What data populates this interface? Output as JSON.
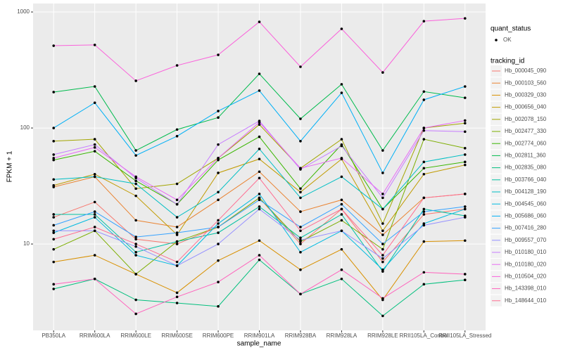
{
  "chart_data": {
    "type": "line",
    "x_label": "sample_name",
    "y_label": "FPKM + 1",
    "log_y": true,
    "grid": true,
    "point_color": "#000000",
    "categories": [
      "PB350LA",
      "RRIM600LA",
      "RRIM600LE",
      "RRIM600SE",
      "RRIM600PE",
      "RRIM901LA",
      "RRIM928BA",
      "RRIM928LA",
      "RRIM928LE",
      "RRII105LA_Control",
      "RRII105LA_Stressed"
    ],
    "ylim": [
      1.8,
      1183
    ],
    "yticks": [
      10,
      100,
      1000
    ],
    "shape_legend": {
      "title": "quant_status",
      "entries": [
        "OK"
      ]
    },
    "legend_title": "tracking_id",
    "legend_position": "right",
    "series": [
      {
        "name": "Hb_000045_090",
        "color": "#F8766D",
        "values": [
          17,
          23,
          11,
          10,
          14,
          25,
          10,
          20,
          7,
          18,
          20
        ]
      },
      {
        "name": "Hb_000103_560",
        "color": "#EA8331",
        "values": [
          31,
          38,
          16,
          14,
          24,
          42,
          19,
          24,
          12,
          25,
          27
        ]
      },
      {
        "name": "Hb_000329_030",
        "color": "#D89000",
        "values": [
          7,
          8,
          5.5,
          3.8,
          7.2,
          10.7,
          6,
          9,
          3.3,
          10.5,
          10.7
        ]
      },
      {
        "name": "Hb_000656_040",
        "color": "#C09B00",
        "values": [
          32,
          40,
          26,
          12,
          41,
          54,
          28,
          54,
          13,
          40,
          48
        ]
      },
      {
        "name": "Hb_002078_150",
        "color": "#A3A500",
        "values": [
          77,
          80,
          30,
          33,
          55,
          107,
          45,
          80,
          15,
          100,
          110
        ]
      },
      {
        "name": "Hb_002477_330",
        "color": "#7CAE00",
        "values": [
          9,
          13,
          5.5,
          10.5,
          14,
          25,
          10.5,
          16,
          9,
          80,
          67
        ]
      },
      {
        "name": "Hb_002774_060",
        "color": "#39B600",
        "values": [
          53,
          63,
          35,
          22,
          53,
          84,
          30,
          72,
          20,
          45,
          51
        ]
      },
      {
        "name": "Hb_002811_360",
        "color": "#00BB4E",
        "values": [
          204,
          228,
          64,
          97,
          123,
          293,
          120,
          238,
          64,
          206,
          182
        ]
      },
      {
        "name": "Hb_002835_080",
        "color": "#00BF7D",
        "values": [
          4.1,
          5,
          3.3,
          3.1,
          2.9,
          7.3,
          3.7,
          5,
          2.4,
          4.5,
          4.9
        ]
      },
      {
        "name": "Hb_003766_040",
        "color": "#00C1A3",
        "values": [
          18,
          18,
          8.5,
          10.5,
          12.5,
          21,
          11.3,
          18,
          5.8,
          20,
          17.5
        ]
      },
      {
        "name": "Hb_004128_190",
        "color": "#00BFC4",
        "values": [
          36,
          38,
          33,
          17,
          28,
          66,
          25,
          38,
          20,
          51,
          59
        ]
      },
      {
        "name": "Hb_004545_060",
        "color": "#00BAE0",
        "values": [
          12.5,
          17,
          8,
          6.5,
          15,
          27,
          8.5,
          13,
          6,
          15,
          20
        ]
      },
      {
        "name": "Hb_005686_060",
        "color": "#00B0F6",
        "values": [
          100,
          165,
          58,
          85,
          140,
          210,
          77,
          201,
          41,
          175,
          228
        ]
      },
      {
        "name": "Hb_007416_280",
        "color": "#35A2FF",
        "values": [
          14.5,
          19,
          11.5,
          12.5,
          14,
          24,
          14,
          22,
          10,
          19,
          21
        ]
      },
      {
        "name": "Hb_009557_070",
        "color": "#9590FF",
        "values": [
          13,
          13,
          9.5,
          6.5,
          10,
          20,
          10.8,
          13,
          7.5,
          14.5,
          17
        ]
      },
      {
        "name": "Hb_010180_010",
        "color": "#C77CFF",
        "values": [
          59,
          72,
          37,
          22,
          72,
          115,
          44,
          70,
          25,
          95,
          93
        ]
      },
      {
        "name": "Hb_010180_020",
        "color": "#E76BF3",
        "values": [
          55,
          68,
          38,
          24,
          55,
          112,
          45,
          55,
          27,
          100,
          116
        ]
      },
      {
        "name": "Hb_010504_020",
        "color": "#FA62DB",
        "values": [
          512,
          520,
          255,
          346,
          427,
          822,
          337,
          716,
          301,
          833,
          881
        ]
      },
      {
        "name": "Hb_143398_010",
        "color": "#FF62BC",
        "values": [
          4.5,
          5,
          2.5,
          3.5,
          4.7,
          8,
          3.7,
          6,
          3.4,
          5.7,
          5.5
        ]
      },
      {
        "name": "Hb_148644_010",
        "color": "#FF6C91",
        "values": [
          11,
          14,
          10,
          7,
          16,
          37,
          13,
          20,
          8,
          25,
          27
        ]
      }
    ]
  }
}
